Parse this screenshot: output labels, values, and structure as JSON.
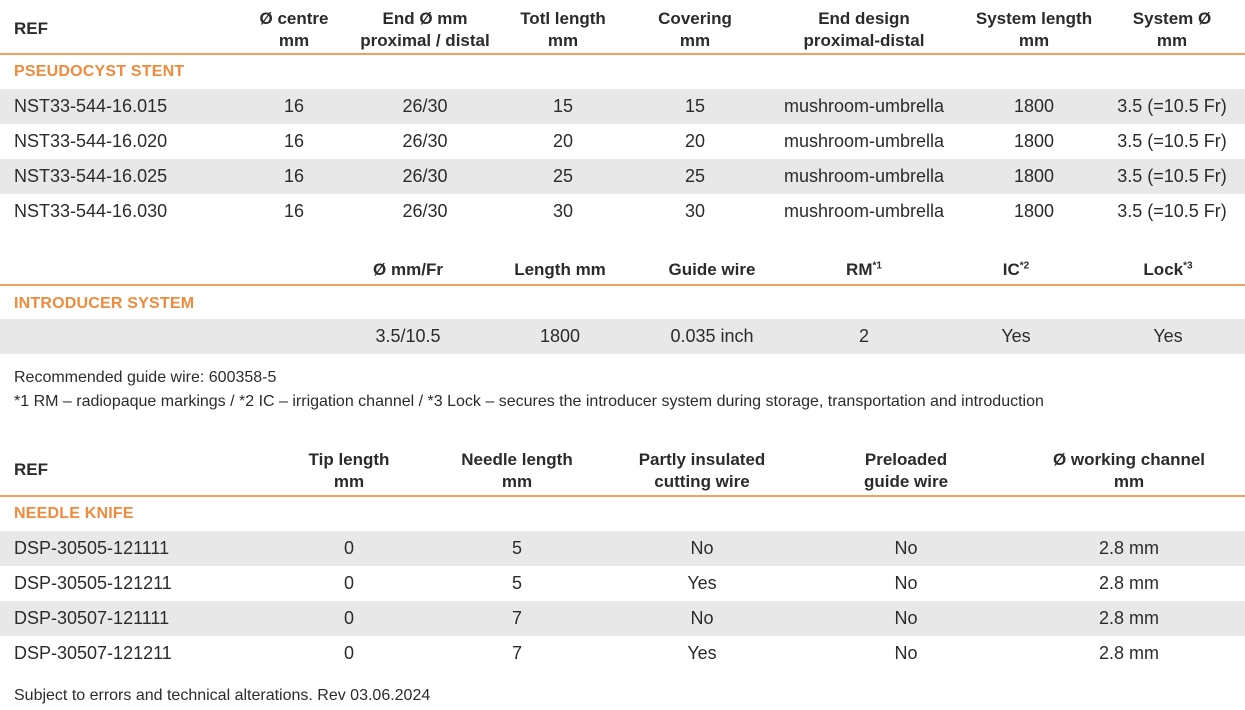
{
  "stent": {
    "headers": {
      "ref": "REF",
      "centre": [
        "Ø centre",
        "mm"
      ],
      "end": [
        "End Ø mm",
        "proximal / distal"
      ],
      "total": [
        "Totl length",
        "mm"
      ],
      "covering": [
        "Covering",
        "mm"
      ],
      "design": [
        "End design",
        "proximal-distal"
      ],
      "syslen": [
        "System length",
        "mm"
      ],
      "sysdia": [
        "System Ø",
        "mm"
      ]
    },
    "section": "PSEUDOCYST STENT",
    "rows": [
      [
        "NST33-544-16.015",
        "16",
        "26/30",
        "15",
        "15",
        "mushroom-umbrella",
        "1800",
        "3.5 (=10.5 Fr)"
      ],
      [
        "NST33-544-16.020",
        "16",
        "26/30",
        "20",
        "20",
        "mushroom-umbrella",
        "1800",
        "3.5 (=10.5 Fr)"
      ],
      [
        "NST33-544-16.025",
        "16",
        "26/30",
        "25",
        "25",
        "mushroom-umbrella",
        "1800",
        "3.5 (=10.5 Fr)"
      ],
      [
        "NST33-544-16.030",
        "16",
        "26/30",
        "30",
        "30",
        "mushroom-umbrella",
        "1800",
        "3.5 (=10.5 Fr)"
      ]
    ]
  },
  "introducer": {
    "headers": {
      "dia": "Ø mm/Fr",
      "length": "Length mm",
      "wire": "Guide wire",
      "rm": "RM",
      "rm_sup": "*1",
      "ic": "IC",
      "ic_sup": "*2",
      "lock": "Lock",
      "lock_sup": "*3"
    },
    "section": "INTRODUCER SYSTEM",
    "row": [
      "3.5/10.5",
      "1800",
      "0.035 inch",
      "2",
      "Yes",
      "Yes"
    ],
    "note1": "Recommended guide wire: 600358-5",
    "note2": "*1 RM – radiopaque markings / *2 IC – irrigation channel / *3 Lock – secures the introducer system during storage, transportation and introduction"
  },
  "knife": {
    "headers": {
      "ref": "REF",
      "tip": [
        "Tip length",
        "mm"
      ],
      "needle": [
        "Needle length",
        "mm"
      ],
      "insulated": [
        "Partly insulated",
        "cutting wire"
      ],
      "preloaded": [
        "Preloaded",
        "guide wire"
      ],
      "channel": [
        "Ø working channel",
        "mm"
      ]
    },
    "section": "NEEDLE KNIFE",
    "rows": [
      [
        "DSP-30505-121111",
        "0",
        "5",
        "No",
        "No",
        "2.8 mm"
      ],
      [
        "DSP-30505-121211",
        "0",
        "5",
        "Yes",
        "No",
        "2.8 mm"
      ],
      [
        "DSP-30507-121111",
        "0",
        "7",
        "No",
        "No",
        "2.8 mm"
      ],
      [
        "DSP-30507-121211",
        "0",
        "7",
        "Yes",
        "No",
        "2.8 mm"
      ]
    ]
  },
  "footer": "Subject to errors and technical alterations. Rev 03.06.2024",
  "colors": {
    "accent": "#f08a3c",
    "rule": "#f0a060",
    "shade": "#e8e8e8"
  }
}
